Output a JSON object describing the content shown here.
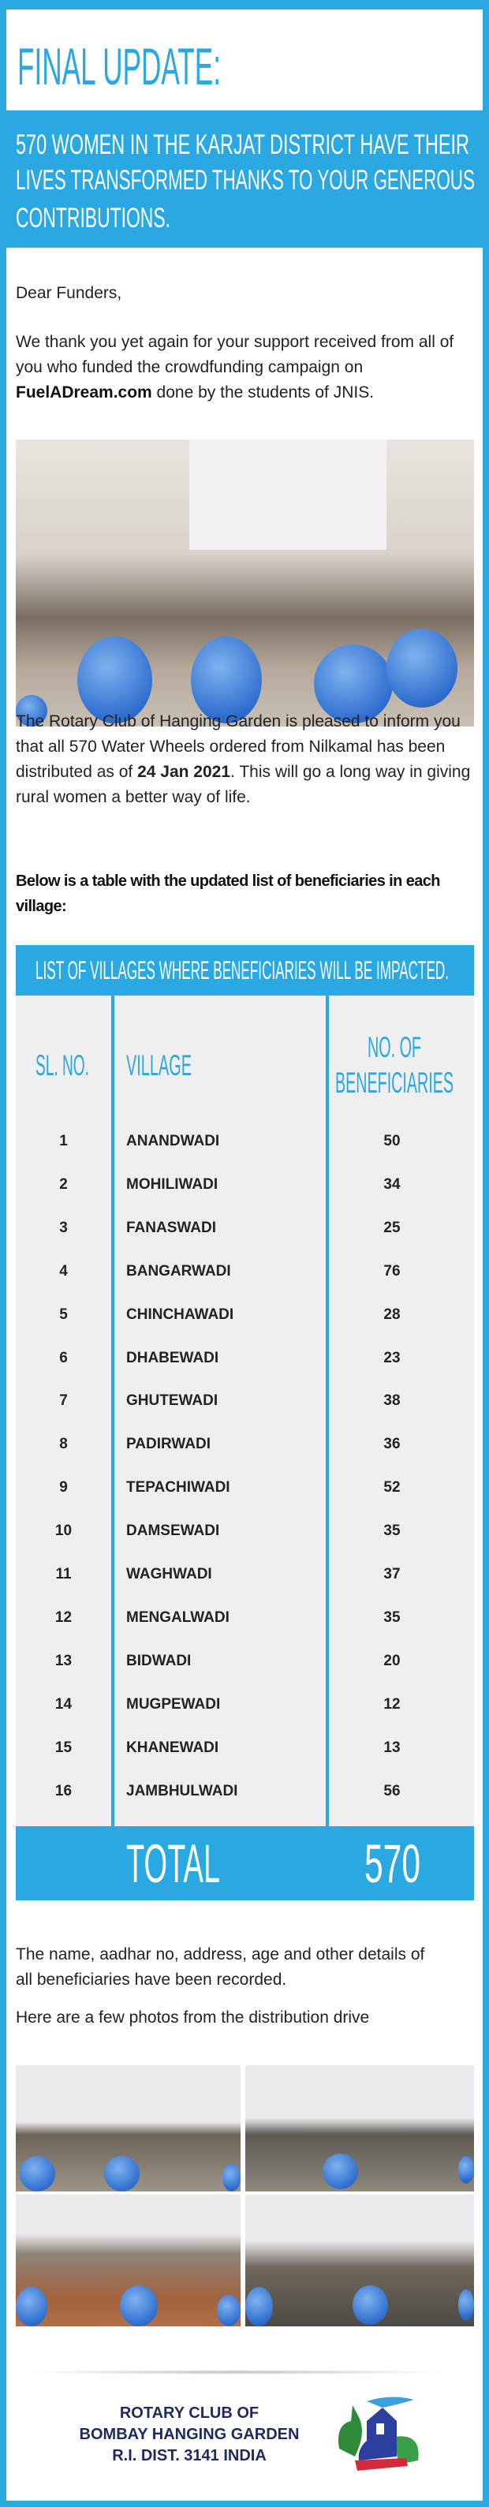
{
  "colors": {
    "accent": "#29a8e2",
    "table_bg": "#efefef",
    "logo_text": "#1f2a5c"
  },
  "header": {
    "title": "FINAL UPDATE:"
  },
  "banner": {
    "lines": [
      "570 WOMEN IN THE KARJAT DISTRICT HAVE THEIR",
      "LIVES TRANSFORMED THANKS TO YOUR GENEROUS",
      "CONTRIBUTIONS."
    ]
  },
  "letter": {
    "greeting": "Dear Funders,",
    "para1_before": "We thank you yet again for your support received from all of you who funded the crowdfunding campaign on ",
    "para1_link": "FuelADream.com",
    "para1_after": " done by the students of JNIS.",
    "para2_before": "The Rotary Club of Hanging Garden is pleased to inform you that all 570 Water Wheels ordered from Nilkamal has been distributed as of ",
    "para2_date": "24 Jan 2021",
    "para2_after": ". This will go a long way in giving rural women a better way of life.",
    "table_intro": "Below is a table with the updated list of beneficiaries in each village:",
    "records_note": "The name, aadhar no, address, age and other details of all beneficiaries have been recorded.",
    "photos_intro": "Here are a few photos from the distribution drive"
  },
  "table": {
    "title": "LIST OF VILLAGES WHERE BENEFICIARIES WILL BE IMPACTED.",
    "headers": {
      "sl": "SL. NO.",
      "village": "VILLAGE",
      "count_1": "NO. OF",
      "count_2": "BENEFICIARIES"
    },
    "rows": [
      {
        "sl": "1",
        "village": "ANANDWADI",
        "count": "50"
      },
      {
        "sl": "2",
        "village": "MOHILIWADI",
        "count": "34"
      },
      {
        "sl": "3",
        "village": "FANASWADI",
        "count": "25"
      },
      {
        "sl": "4",
        "village": "BANGARWADI",
        "count": "76"
      },
      {
        "sl": "5",
        "village": "CHINCHAWADI",
        "count": "28"
      },
      {
        "sl": "6",
        "village": "DHABEWADI",
        "count": "23"
      },
      {
        "sl": "7",
        "village": "GHUTEWADI",
        "count": "38"
      },
      {
        "sl": "8",
        "village": "PADIRWADI",
        "count": "36"
      },
      {
        "sl": "9",
        "village": "TEPACHIWADI",
        "count": "52"
      },
      {
        "sl": "10",
        "village": "DAMSEWADI",
        "count": "35"
      },
      {
        "sl": "11",
        "village": "WAGHWADI",
        "count": "37"
      },
      {
        "sl": "12",
        "village": "MENGALWADI",
        "count": "35"
      },
      {
        "sl": "13",
        "village": "BIDWADI",
        "count": "20"
      },
      {
        "sl": "14",
        "village": "MUGPEWADI",
        "count": "12"
      },
      {
        "sl": "15",
        "village": "KHANEWADI",
        "count": "13"
      },
      {
        "sl": "16",
        "village": "JAMBHULWADI",
        "count": "56"
      }
    ],
    "total_label": "TOTAL",
    "total_value": "570"
  },
  "footer": {
    "lines": [
      "ROTARY CLUB OF",
      "BOMBAY HANGING GARDEN",
      "R.I. DIST. 3141 INDIA"
    ],
    "logo_icon": "rotary-hanging-garden-logo"
  }
}
